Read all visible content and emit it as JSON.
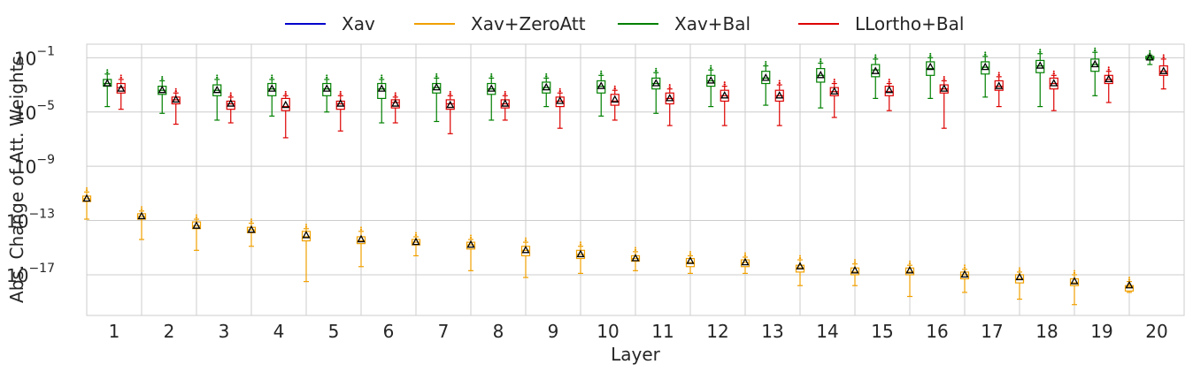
{
  "chart_data": {
    "type": "box",
    "title": "",
    "xlabel": "Layer",
    "ylabel": "Abs. Change of Att. Weights",
    "yscale": "log",
    "ylim": [
      1e-20,
      1.0
    ],
    "yticks": [
      {
        "value": 0.1,
        "base": "10",
        "exp": "−1"
      },
      {
        "value": 1e-05,
        "base": "10",
        "exp": "−5"
      },
      {
        "value": 1e-09,
        "base": "10",
        "exp": "−9"
      },
      {
        "value": 1e-13,
        "base": "10",
        "exp": "−13"
      },
      {
        "value": 1e-17,
        "base": "10",
        "exp": "−17"
      }
    ],
    "categories": [
      "1",
      "2",
      "3",
      "4",
      "5",
      "6",
      "7",
      "8",
      "9",
      "10",
      "11",
      "12",
      "13",
      "14",
      "15",
      "16",
      "17",
      "18",
      "19",
      "20"
    ],
    "grid": true,
    "legend": {
      "placement": "top-center",
      "entries": [
        {
          "name": "Xav",
          "color": "#0000cc"
        },
        {
          "name": "Xav+ZeroAtt",
          "color": "#f0a000"
        },
        {
          "name": "Xav+Bal",
          "color": "#008000"
        },
        {
          "name": "LLortho+Bal",
          "color": "#dd0000"
        }
      ]
    },
    "series": [
      {
        "name": "Xav+ZeroAtt",
        "color": "#f0a000",
        "offset": -0.5,
        "boxes": [
          {
            "q1": -11.6,
            "q3": -11.2,
            "median": -11.4,
            "mean": -11.4,
            "wlo": -12.9,
            "whi": -10.9
          },
          {
            "q1": -12.9,
            "q3": -12.5,
            "median": -12.7,
            "mean": -12.7,
            "wlo": -14.4,
            "whi": -12.3
          },
          {
            "q1": -13.6,
            "q3": -13.1,
            "median": -13.4,
            "mean": -13.4,
            "wlo": -15.2,
            "whi": -12.9
          },
          {
            "q1": -13.9,
            "q3": -13.5,
            "median": -13.7,
            "mean": -13.7,
            "wlo": -14.9,
            "whi": -13.2
          },
          {
            "q1": -14.5,
            "q3": -13.8,
            "median": -14.2,
            "mean": -14.1,
            "wlo": -17.5,
            "whi": -13.6
          },
          {
            "q1": -14.7,
            "q3": -14.2,
            "median": -14.5,
            "mean": -14.4,
            "wlo": -16.4,
            "whi": -13.8
          },
          {
            "q1": -14.8,
            "q3": -14.4,
            "median": -14.6,
            "mean": -14.6,
            "wlo": -15.6,
            "whi": -14.2
          },
          {
            "q1": -15.1,
            "q3": -14.6,
            "median": -14.8,
            "mean": -14.8,
            "wlo": -16.7,
            "whi": -14.4
          },
          {
            "q1": -15.6,
            "q3": -14.9,
            "median": -15.2,
            "mean": -15.2,
            "wlo": -17.2,
            "whi": -14.6
          },
          {
            "q1": -15.8,
            "q3": -15.2,
            "median": -15.5,
            "mean": -15.5,
            "wlo": -16.9,
            "whi": -14.9
          },
          {
            "q1": -16.0,
            "q3": -15.6,
            "median": -15.8,
            "mean": -15.8,
            "wlo": -16.7,
            "whi": -15.3
          },
          {
            "q1": -16.4,
            "q3": -15.8,
            "median": -16.1,
            "mean": -16.0,
            "wlo": -16.9,
            "whi": -15.6
          },
          {
            "q1": -16.4,
            "q3": -15.9,
            "median": -16.1,
            "mean": -16.1,
            "wlo": -16.9,
            "whi": -15.7
          },
          {
            "q1": -16.8,
            "q3": -16.3,
            "median": -16.5,
            "mean": -16.4,
            "wlo": -17.8,
            "whi": -15.9
          },
          {
            "q1": -17.0,
            "q3": -16.5,
            "median": -16.8,
            "mean": -16.7,
            "wlo": -17.8,
            "whi": -16.2
          },
          {
            "q1": -17.0,
            "q3": -16.5,
            "median": -16.8,
            "mean": -16.7,
            "wlo": -18.6,
            "whi": -16.3
          },
          {
            "q1": -17.3,
            "q3": -16.8,
            "median": -17.0,
            "mean": -17.0,
            "wlo": -18.3,
            "whi": -16.6
          },
          {
            "q1": -17.6,
            "q3": -17.0,
            "median": -17.3,
            "mean": -17.2,
            "wlo": -18.8,
            "whi": -16.8
          },
          {
            "q1": -17.8,
            "q3": -17.3,
            "median": -17.6,
            "mean": -17.5,
            "wlo": -19.2,
            "whi": -17.0
          },
          {
            "q1": -18.2,
            "q3": -17.8,
            "median": -17.9,
            "mean": -17.8,
            "wlo": -18.3,
            "whi": -17.5
          }
        ]
      },
      {
        "name": "Xav+Bal",
        "color": "#008000",
        "offset": -0.125,
        "boxes": [
          {
            "q1": -3.1,
            "q3": -2.6,
            "median": -2.9,
            "mean": -2.9,
            "wlo": -4.6,
            "whi": -2.2
          },
          {
            "q1": -3.7,
            "q3": -3.1,
            "median": -3.4,
            "mean": -3.4,
            "wlo": -5.1,
            "whi": -2.7
          },
          {
            "q1": -3.8,
            "q3": -3.0,
            "median": -3.4,
            "mean": -3.4,
            "wlo": -5.6,
            "whi": -2.6
          },
          {
            "q1": -3.8,
            "q3": -2.9,
            "median": -3.3,
            "mean": -3.3,
            "wlo": -5.3,
            "whi": -2.6
          },
          {
            "q1": -3.8,
            "q3": -2.9,
            "median": -3.3,
            "mean": -3.3,
            "wlo": -5.0,
            "whi": -2.6
          },
          {
            "q1": -4.0,
            "q3": -2.9,
            "median": -3.3,
            "mean": -3.3,
            "wlo": -5.8,
            "whi": -2.6
          },
          {
            "q1": -3.6,
            "q3": -2.9,
            "median": -3.2,
            "mean": -3.2,
            "wlo": -5.7,
            "whi": -2.5
          },
          {
            "q1": -3.7,
            "q3": -2.9,
            "median": -3.3,
            "mean": -3.3,
            "wlo": -5.6,
            "whi": -2.5
          },
          {
            "q1": -3.6,
            "q3": -2.8,
            "median": -3.2,
            "mean": -3.2,
            "wlo": -4.6,
            "whi": -2.5
          },
          {
            "q1": -3.6,
            "q3": -2.7,
            "median": -3.1,
            "mean": -3.1,
            "wlo": -5.3,
            "whi": -2.3
          },
          {
            "q1": -3.3,
            "q3": -2.5,
            "median": -2.9,
            "mean": -2.9,
            "wlo": -5.1,
            "whi": -2.1
          },
          {
            "q1": -3.1,
            "q3": -2.3,
            "median": -2.7,
            "mean": -2.7,
            "wlo": -4.6,
            "whi": -1.9
          },
          {
            "q1": -2.9,
            "q3": -2.0,
            "median": -2.5,
            "mean": -2.5,
            "wlo": -4.5,
            "whi": -1.6
          },
          {
            "q1": -2.8,
            "q3": -1.8,
            "median": -2.3,
            "mean": -2.3,
            "wlo": -4.7,
            "whi": -1.4
          },
          {
            "q1": -2.4,
            "q3": -1.5,
            "median": -1.9,
            "mean": -2.0,
            "wlo": -4.0,
            "whi": -1.1
          },
          {
            "q1": -2.3,
            "q3": -1.3,
            "median": -1.8,
            "mean": -1.7,
            "wlo": -4.0,
            "whi": -1.0
          },
          {
            "q1": -2.2,
            "q3": -1.3,
            "median": -1.7,
            "mean": -1.7,
            "wlo": -3.9,
            "whi": -0.9
          },
          {
            "q1": -2.1,
            "q3": -1.2,
            "median": -1.6,
            "mean": -1.6,
            "wlo": -4.6,
            "whi": -0.7
          },
          {
            "q1": -2.0,
            "q3": -1.1,
            "median": -1.5,
            "mean": -1.5,
            "wlo": -3.8,
            "whi": -0.6
          },
          {
            "q1": -1.1,
            "q3": -0.9,
            "median": -1.0,
            "mean": -1.0,
            "wlo": -1.5,
            "whi": -0.8
          }
        ]
      },
      {
        "name": "LLortho+Bal",
        "color": "#dd0000",
        "offset": 0.125,
        "boxes": [
          {
            "q1": -3.6,
            "q3": -2.9,
            "median": -3.2,
            "mean": -3.3,
            "wlo": -4.8,
            "whi": -2.6
          },
          {
            "q1": -4.4,
            "q3": -3.9,
            "median": -4.1,
            "mean": -4.1,
            "wlo": -5.9,
            "whi": -3.6
          },
          {
            "q1": -4.8,
            "q3": -4.2,
            "median": -4.4,
            "mean": -4.4,
            "wlo": -5.8,
            "whi": -3.9
          },
          {
            "q1": -4.9,
            "q3": -4.0,
            "median": -4.6,
            "mean": -4.5,
            "wlo": -6.9,
            "whi": -3.8
          },
          {
            "q1": -4.8,
            "q3": -4.2,
            "median": -4.4,
            "mean": -4.4,
            "wlo": -6.4,
            "whi": -3.8
          },
          {
            "q1": -4.7,
            "q3": -4.1,
            "median": -4.3,
            "mean": -4.4,
            "wlo": -5.8,
            "whi": -3.9
          },
          {
            "q1": -4.8,
            "q3": -4.1,
            "median": -4.4,
            "mean": -4.5,
            "wlo": -6.6,
            "whi": -3.8
          },
          {
            "q1": -4.7,
            "q3": -4.1,
            "median": -4.4,
            "mean": -4.4,
            "wlo": -5.6,
            "whi": -3.8
          },
          {
            "q1": -4.6,
            "q3": -3.9,
            "median": -4.2,
            "mean": -4.2,
            "wlo": -6.2,
            "whi": -3.6
          },
          {
            "q1": -4.5,
            "q3": -3.7,
            "median": -4.2,
            "mean": -4.1,
            "wlo": -5.6,
            "whi": -3.4
          },
          {
            "q1": -4.4,
            "q3": -3.6,
            "median": -4.0,
            "mean": -4.0,
            "wlo": -6.0,
            "whi": -3.3
          },
          {
            "q1": -4.2,
            "q3": -3.4,
            "median": -3.8,
            "mean": -3.8,
            "wlo": -6.0,
            "whi": -3.1
          },
          {
            "q1": -4.2,
            "q3": -3.4,
            "median": -3.8,
            "mean": -3.8,
            "wlo": -6.0,
            "whi": -3.0
          },
          {
            "q1": -3.8,
            "q3": -3.2,
            "median": -3.5,
            "mean": -3.5,
            "wlo": -5.4,
            "whi": -2.9
          },
          {
            "q1": -3.8,
            "q3": -3.1,
            "median": -3.5,
            "mean": -3.4,
            "wlo": -4.9,
            "whi": -2.9
          },
          {
            "q1": -3.6,
            "q3": -3.0,
            "median": -3.3,
            "mean": -3.3,
            "wlo": -6.2,
            "whi": -2.7
          },
          {
            "q1": -3.4,
            "q3": -2.7,
            "median": -3.1,
            "mean": -3.1,
            "wlo": -4.6,
            "whi": -2.4
          },
          {
            "q1": -3.3,
            "q3": -2.5,
            "median": -2.9,
            "mean": -2.9,
            "wlo": -4.9,
            "whi": -2.3
          },
          {
            "q1": -2.9,
            "q3": -2.3,
            "median": -2.6,
            "mean": -2.6,
            "wlo": -4.3,
            "whi": -2.0
          },
          {
            "q1": -2.3,
            "q3": -1.6,
            "median": -2.0,
            "mean": -2.0,
            "wlo": -3.3,
            "whi": -1.1
          }
        ]
      }
    ]
  }
}
